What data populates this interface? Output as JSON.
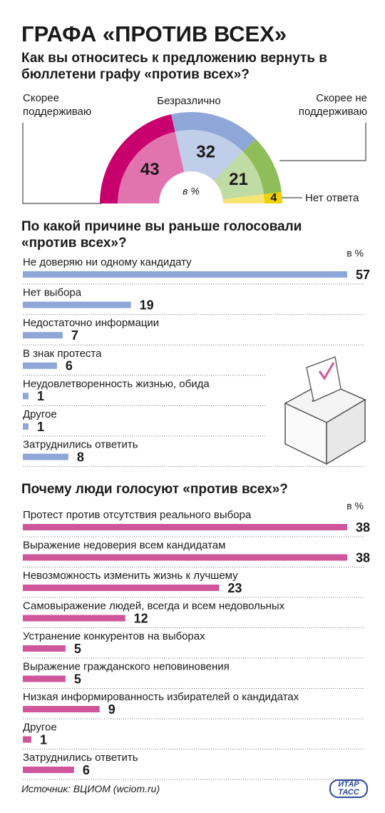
{
  "title": "ГРАФА «ПРОТИВ ВСЕХ»",
  "source": "Источник: ВЦИОМ (wciom.ru)",
  "logo": "ИТАР ТАСС",
  "chart_data": [
    {
      "type": "pie",
      "title": "Как вы относитесь к предложению вернуть в бюллетени графу «против всех»?",
      "unit_label": "в %",
      "categories": [
        "Скорее поддерживаю",
        "Безразлично",
        "Скорее не поддерживаю",
        "Нет ответа"
      ],
      "values": [
        43,
        32,
        21,
        4
      ],
      "colors": [
        "#c8006e",
        "#8fa6d8",
        "#8fbd5a",
        "#f0d000"
      ]
    },
    {
      "type": "bar",
      "title": "По какой причине вы раньше голосовали «против всех»?",
      "unit_label": "в %",
      "categories": [
        "Не доверяю ни одному кандидату",
        "Нет выбора",
        "Недостаточно информации",
        "В знак протеста",
        "Неудовлетворенность жизнью, обида",
        "Другое",
        "Затруднились ответить"
      ],
      "values": [
        57,
        19,
        7,
        6,
        1,
        1,
        8
      ],
      "color": "#8fa6d8"
    },
    {
      "type": "bar",
      "title": "Почему люди голосуют «против всех»?",
      "unit_label": "в %",
      "categories": [
        "Протест против отсутствия реального выбора",
        "Выражение недоверия всем кандидатам",
        "Невозможность изменить жизнь к лучшему",
        "Самовыражение людей, всегда и всем недовольных",
        "Устранение конкурентов на выборах",
        "Выражение гражданского неповиновения",
        "Низкая информированность избирателей о кандидатах",
        "Другое",
        "Затруднились ответить"
      ],
      "values": [
        38,
        38,
        23,
        12,
        5,
        5,
        9,
        1,
        6
      ],
      "color": "#d0569c"
    }
  ]
}
